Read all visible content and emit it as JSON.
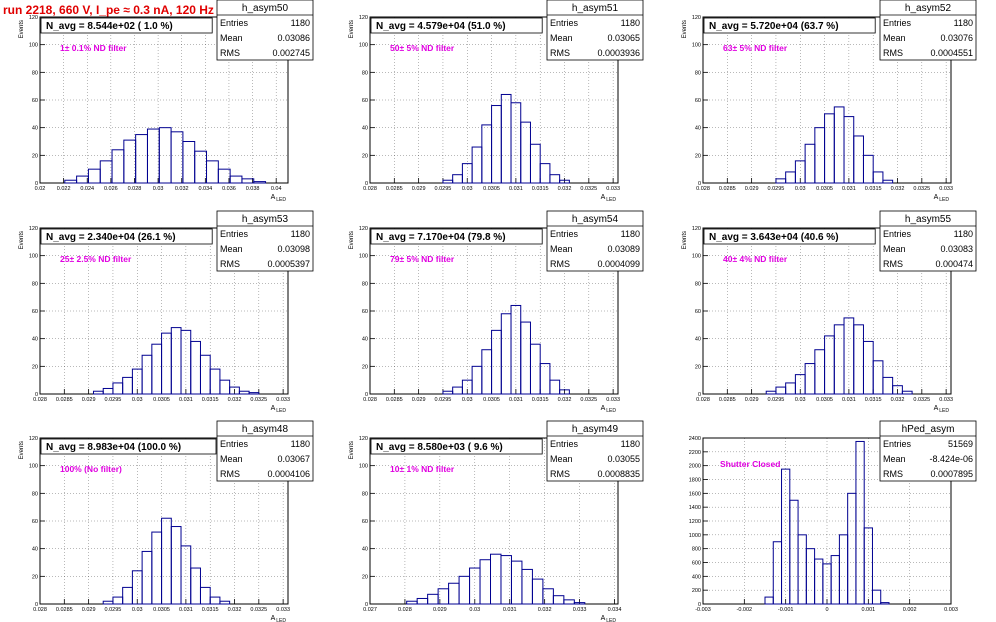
{
  "page": {
    "title": "run 2218,   660 V, I_pe ≈ 0.3 nA, 120 Hz",
    "colors": {
      "title": "#e00000",
      "histogram": "#000090",
      "annotation": "#e000e0",
      "grid": "#000000",
      "frame": "#000000"
    }
  },
  "chart_data": [
    {
      "type": "bar",
      "name": "h_asym50",
      "stats": {
        "entries_label": "Entries",
        "entries": "1180",
        "mean_label": "Mean",
        "mean": "0.03086",
        "rms_label": "RMS",
        "rms": "0.002745"
      },
      "title": "N_avg = 8.544e+02 ( 1.0 %)",
      "annotation": "1± 0.1% ND filter",
      "ylabel": "Events",
      "xlabel": "A_LED",
      "xlim": [
        0.02,
        0.041
      ],
      "ylim": [
        0,
        120
      ],
      "xticks": [
        0.02,
        0.022,
        0.024,
        0.026,
        0.028,
        0.03,
        0.032,
        0.034,
        0.036,
        0.038,
        0.04
      ],
      "xtick_labels": [
        "0.02",
        "0.022",
        "0.024",
        "0.026",
        "0.028",
        "0.03",
        "0.032",
        "0.034",
        "0.036",
        "0.038",
        "0.04"
      ],
      "yticks": [
        0,
        20,
        40,
        60,
        80,
        100,
        120
      ],
      "ytick_labels": [
        "0",
        "20",
        "40",
        "60",
        "80",
        "100",
        "120"
      ],
      "grid": true,
      "x": [
        0.0226,
        0.0236,
        0.0246,
        0.0256,
        0.0266,
        0.0276,
        0.0286,
        0.0296,
        0.0306,
        0.0316,
        0.0326,
        0.0336,
        0.0346,
        0.0356,
        0.0366,
        0.0376,
        0.0386
      ],
      "values": [
        2,
        5,
        10,
        16,
        24,
        31,
        35,
        39,
        40,
        37,
        30,
        23,
        16,
        10,
        5,
        3,
        1
      ]
    },
    {
      "type": "bar",
      "name": "h_asym51",
      "stats": {
        "entries_label": "Entries",
        "entries": "1180",
        "mean_label": "Mean",
        "mean": "0.03065",
        "rms_label": "RMS",
        "rms": "0.0003936"
      },
      "title": "N_avg = 4.579e+04 (51.0 %)",
      "annotation": "50± 5% ND filter",
      "ylabel": "Events",
      "xlabel": "A_LED",
      "xlim": [
        0.028,
        0.0331
      ],
      "ylim": [
        0,
        120
      ],
      "xticks": [
        0.028,
        0.0285,
        0.029,
        0.0295,
        0.03,
        0.0305,
        0.031,
        0.0315,
        0.032,
        0.0325,
        0.033
      ],
      "xtick_labels": [
        "0.028",
        "0.0285",
        "0.029",
        "0.0295",
        "0.03",
        "0.0305",
        "0.031",
        "0.0315",
        "0.032",
        "0.0325",
        "0.033"
      ],
      "yticks": [
        0,
        20,
        40,
        60,
        80,
        100,
        120
      ],
      "ytick_labels": [
        "0",
        "20",
        "40",
        "60",
        "80",
        "100",
        "120"
      ],
      "grid": true,
      "x": [
        0.0296,
        0.0298,
        0.03,
        0.0302,
        0.0304,
        0.0306,
        0.0308,
        0.031,
        0.0312,
        0.0314,
        0.0316,
        0.0318,
        0.032
      ],
      "values": [
        2,
        6,
        14,
        26,
        42,
        56,
        64,
        58,
        44,
        28,
        14,
        6,
        2
      ]
    },
    {
      "type": "bar",
      "name": "h_asym52",
      "stats": {
        "entries_label": "Entries",
        "entries": "1180",
        "mean_label": "Mean",
        "mean": "0.03076",
        "rms_label": "RMS",
        "rms": "0.0004551"
      },
      "title": "N_avg = 5.720e+04 (63.7 %)",
      "annotation": "63± 5% ND filter",
      "ylabel": "Events",
      "xlabel": "A_LED",
      "xlim": [
        0.028,
        0.0331
      ],
      "ylim": [
        0,
        120
      ],
      "xticks": [
        0.028,
        0.0285,
        0.029,
        0.0295,
        0.03,
        0.0305,
        0.031,
        0.0315,
        0.032,
        0.0325,
        0.033
      ],
      "xtick_labels": [
        "0.028",
        "0.0285",
        "0.029",
        "0.0295",
        "0.03",
        "0.0305",
        "0.031",
        "0.0315",
        "0.032",
        "0.0325",
        "0.033"
      ],
      "yticks": [
        0,
        20,
        40,
        60,
        80,
        100,
        120
      ],
      "ytick_labels": [
        "0",
        "20",
        "40",
        "60",
        "80",
        "100",
        "120"
      ],
      "grid": true,
      "x": [
        0.0296,
        0.0298,
        0.03,
        0.0302,
        0.0304,
        0.0306,
        0.0308,
        0.031,
        0.0312,
        0.0314,
        0.0316,
        0.0318
      ],
      "values": [
        3,
        8,
        16,
        28,
        40,
        50,
        55,
        48,
        34,
        20,
        8,
        2
      ]
    },
    {
      "type": "bar",
      "name": "h_asym53",
      "stats": {
        "entries_label": "Entries",
        "entries": "1180",
        "mean_label": "Mean",
        "mean": "0.03098",
        "rms_label": "RMS",
        "rms": "0.0005397"
      },
      "title": "N_avg = 2.340e+04 (26.1 %)",
      "annotation": "25± 2.5% ND filter",
      "ylabel": "Events",
      "xlabel": "A_LED",
      "xlim": [
        0.028,
        0.0331
      ],
      "ylim": [
        0,
        120
      ],
      "xticks": [
        0.028,
        0.0285,
        0.029,
        0.0295,
        0.03,
        0.0305,
        0.031,
        0.0315,
        0.032,
        0.0325,
        0.033
      ],
      "xtick_labels": [
        "0.028",
        "0.0285",
        "0.029",
        "0.0295",
        "0.03",
        "0.0305",
        "0.031",
        "0.0315",
        "0.032",
        "0.0325",
        "0.033"
      ],
      "yticks": [
        0,
        20,
        40,
        60,
        80,
        100,
        120
      ],
      "ytick_labels": [
        "0",
        "20",
        "40",
        "60",
        "80",
        "100",
        "120"
      ],
      "grid": true,
      "x": [
        0.0292,
        0.0294,
        0.0296,
        0.0298,
        0.03,
        0.0302,
        0.0304,
        0.0306,
        0.0308,
        0.031,
        0.0312,
        0.0314,
        0.0316,
        0.0318,
        0.032,
        0.0322,
        0.0324
      ],
      "values": [
        2,
        4,
        8,
        12,
        18,
        28,
        36,
        44,
        48,
        46,
        38,
        28,
        18,
        10,
        5,
        2,
        1
      ]
    },
    {
      "type": "bar",
      "name": "h_asym54",
      "stats": {
        "entries_label": "Entries",
        "entries": "1180",
        "mean_label": "Mean",
        "mean": "0.03089",
        "rms_label": "RMS",
        "rms": "0.0004099"
      },
      "title": "N_avg = 7.170e+04 (79.8 %)",
      "annotation": "79± 5% ND filter",
      "ylabel": "Events",
      "xlabel": "A_LED",
      "xlim": [
        0.028,
        0.0331
      ],
      "ylim": [
        0,
        120
      ],
      "xticks": [
        0.028,
        0.0285,
        0.029,
        0.0295,
        0.03,
        0.0305,
        0.031,
        0.0315,
        0.032,
        0.0325,
        0.033
      ],
      "xtick_labels": [
        "0.028",
        "0.0285",
        "0.029",
        "0.0295",
        "0.03",
        "0.0305",
        "0.031",
        "0.0315",
        "0.032",
        "0.0325",
        "0.033"
      ],
      "yticks": [
        0,
        20,
        40,
        60,
        80,
        100,
        120
      ],
      "ytick_labels": [
        "0",
        "20",
        "40",
        "60",
        "80",
        "100",
        "120"
      ],
      "grid": true,
      "x": [
        0.0296,
        0.0298,
        0.03,
        0.0302,
        0.0304,
        0.0306,
        0.0308,
        0.031,
        0.0312,
        0.0314,
        0.0316,
        0.0318,
        0.032
      ],
      "values": [
        2,
        5,
        10,
        20,
        32,
        46,
        58,
        64,
        52,
        36,
        22,
        10,
        3
      ]
    },
    {
      "type": "bar",
      "name": "h_asym55",
      "stats": {
        "entries_label": "Entries",
        "entries": "1180",
        "mean_label": "Mean",
        "mean": "0.03083",
        "rms_label": "RMS",
        "rms": "0.000474"
      },
      "title": "N_avg = 3.643e+04 (40.6 %)",
      "annotation": "40± 4% ND filter",
      "ylabel": "Events",
      "xlabel": "A_LED",
      "xlim": [
        0.028,
        0.0331
      ],
      "ylim": [
        0,
        120
      ],
      "xticks": [
        0.028,
        0.0285,
        0.029,
        0.0295,
        0.03,
        0.0305,
        0.031,
        0.0315,
        0.032,
        0.0325,
        0.033
      ],
      "xtick_labels": [
        "0.028",
        "0.0285",
        "0.029",
        "0.0295",
        "0.03",
        "0.0305",
        "0.031",
        "0.0315",
        "0.032",
        "0.0325",
        "0.033"
      ],
      "yticks": [
        0,
        20,
        40,
        60,
        80,
        100,
        120
      ],
      "ytick_labels": [
        "0",
        "20",
        "40",
        "60",
        "80",
        "100",
        "120"
      ],
      "grid": true,
      "x": [
        0.0294,
        0.0296,
        0.0298,
        0.03,
        0.0302,
        0.0304,
        0.0306,
        0.0308,
        0.031,
        0.0312,
        0.0314,
        0.0316,
        0.0318,
        0.032,
        0.0322
      ],
      "values": [
        2,
        5,
        8,
        14,
        22,
        32,
        42,
        50,
        55,
        50,
        38,
        24,
        12,
        6,
        2
      ]
    },
    {
      "type": "bar",
      "name": "h_asym48",
      "stats": {
        "entries_label": "Entries",
        "entries": "1180",
        "mean_label": "Mean",
        "mean": "0.03067",
        "rms_label": "RMS",
        "rms": "0.0004106"
      },
      "title": "N_avg = 8.983e+04 (100.0 %)",
      "annotation": "100% (No filter)",
      "ylabel": "Events",
      "xlabel": "A_LED",
      "xlim": [
        0.028,
        0.0331
      ],
      "ylim": [
        0,
        120
      ],
      "xticks": [
        0.028,
        0.0285,
        0.029,
        0.0295,
        0.03,
        0.0305,
        0.031,
        0.0315,
        0.032,
        0.0325,
        0.033
      ],
      "xtick_labels": [
        "0.028",
        "0.0285",
        "0.029",
        "0.0295",
        "0.03",
        "0.0305",
        "0.031",
        "0.0315",
        "0.032",
        "0.0325",
        "0.033"
      ],
      "yticks": [
        0,
        20,
        40,
        60,
        80,
        100,
        120
      ],
      "ytick_labels": [
        "0",
        "20",
        "40",
        "60",
        "80",
        "100",
        "120"
      ],
      "grid": true,
      "x": [
        0.0294,
        0.0296,
        0.0298,
        0.03,
        0.0302,
        0.0304,
        0.0306,
        0.0308,
        0.031,
        0.0312,
        0.0314,
        0.0316,
        0.0318
      ],
      "values": [
        2,
        5,
        12,
        24,
        38,
        52,
        62,
        56,
        42,
        26,
        12,
        5,
        2
      ]
    },
    {
      "type": "bar",
      "name": "h_asym49",
      "stats": {
        "entries_label": "Entries",
        "entries": "1180",
        "mean_label": "Mean",
        "mean": "0.03055",
        "rms_label": "RMS",
        "rms": "0.0008835"
      },
      "title": "N_avg = 8.580e+03 ( 9.6 %)",
      "annotation": "10± 1% ND filter",
      "ylabel": "Events",
      "xlabel": "A_LED",
      "xlim": [
        0.027,
        0.0341
      ],
      "ylim": [
        0,
        120
      ],
      "xticks": [
        0.027,
        0.028,
        0.029,
        0.03,
        0.031,
        0.032,
        0.033,
        0.034
      ],
      "xtick_labels": [
        "0.027",
        "0.028",
        "0.029",
        "0.03",
        "0.031",
        "0.032",
        "0.033",
        "0.034"
      ],
      "yticks": [
        0,
        20,
        40,
        60,
        80,
        100,
        120
      ],
      "ytick_labels": [
        "0",
        "20",
        "40",
        "60",
        "80",
        "100",
        "120"
      ],
      "grid": true,
      "x": [
        0.0282,
        0.0285,
        0.0288,
        0.0291,
        0.0294,
        0.0297,
        0.03,
        0.0303,
        0.0306,
        0.0309,
        0.0312,
        0.0315,
        0.0318,
        0.0321,
        0.0324,
        0.0327,
        0.033
      ],
      "values": [
        2,
        4,
        7,
        11,
        15,
        20,
        26,
        32,
        36,
        35,
        31,
        25,
        18,
        11,
        6,
        3,
        1
      ]
    },
    {
      "type": "bar",
      "name": "hPed_asym",
      "stats": {
        "entries_label": "Entries",
        "entries": "51569",
        "mean_label": "Mean",
        "mean": "-8.424e-06",
        "rms_label": "RMS",
        "rms": "0.0007895"
      },
      "title": "",
      "annotation": "Shutter Closed",
      "ylabel": "",
      "xlabel": "",
      "xlim": [
        -0.003,
        0.003
      ],
      "ylim": [
        0,
        2400
      ],
      "xticks": [
        -0.003,
        -0.002,
        -0.001,
        0,
        0.001,
        0.002,
        0.003
      ],
      "xtick_labels": [
        "-0.003",
        "-0.002",
        "-0.001",
        "0",
        "0.001",
        "0.002",
        "0.003"
      ],
      "yticks": [
        0,
        200,
        400,
        600,
        800,
        1000,
        1200,
        1400,
        1600,
        1800,
        2000,
        2200,
        2400
      ],
      "ytick_labels": [
        "0",
        "200",
        "400",
        "600",
        "800",
        "1000",
        "1200",
        "1400",
        "1600",
        "1800",
        "2000",
        "2200",
        "2400"
      ],
      "grid": true,
      "x": [
        -0.0014,
        -0.0012,
        -0.001,
        -0.0008,
        -0.0006,
        -0.0004,
        -0.0002,
        0,
        0.0002,
        0.0004,
        0.0006,
        0.0008,
        0.001,
        0.0012,
        0.0014
      ],
      "values": [
        100,
        900,
        1950,
        1500,
        1000,
        800,
        650,
        580,
        700,
        1000,
        1600,
        2350,
        1100,
        200,
        20
      ]
    }
  ]
}
